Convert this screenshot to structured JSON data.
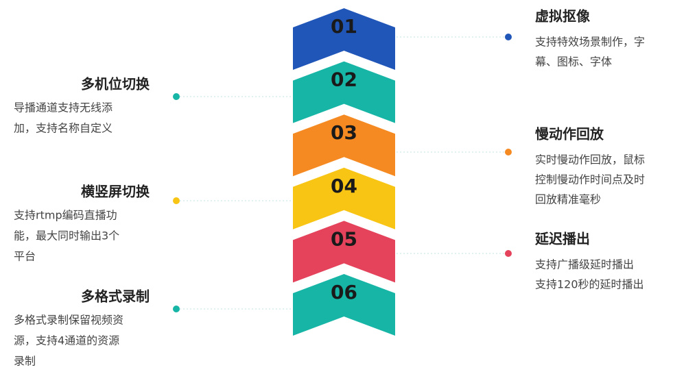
{
  "items": [
    {
      "number": "01",
      "title": "虚拟抠像",
      "lines": [
        "支持特效场景制作，字",
        "幕、图标、字体"
      ],
      "color": "#2156b9"
    },
    {
      "number": "02",
      "title": "多机位切换",
      "lines": [
        "导播通道支持无线添",
        "加，支持名称自定义"
      ],
      "color": "#16b5a6"
    },
    {
      "number": "03",
      "title": "慢动作回放",
      "lines": [
        "实时慢动作回放，鼠标",
        "控制慢动作时间点及时",
        "回放精准毫秒"
      ],
      "color": "#f68a22"
    },
    {
      "number": "04",
      "title": "横竖屏切换",
      "lines": [
        "支持rtmp编码直播功",
        "能，最大同时输出3个",
        "平台"
      ],
      "color": "#f8c515"
    },
    {
      "number": "05",
      "title": "延迟播出",
      "lines": [
        "支持广播级延时播出",
        "支持120秒的延时播出"
      ],
      "color": "#e4435b"
    },
    {
      "number": "06",
      "title": "多格式录制",
      "lines": [
        "多格式录制保留视频资",
        "源，支持4通道的资源",
        "录制"
      ],
      "color": "#16b5a6"
    }
  ]
}
